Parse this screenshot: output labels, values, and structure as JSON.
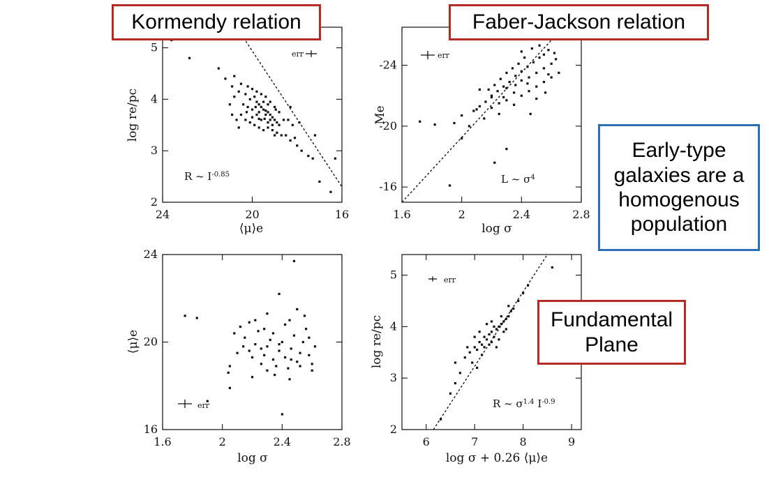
{
  "callouts": {
    "kormendy": "Kormendy relation",
    "faber_jackson": "Faber-Jackson relation",
    "fundamental_plane": [
      "Fundamental",
      "Plane"
    ],
    "early_type": [
      "Early-type",
      "galaxies are a",
      "homogenous",
      "population"
    ]
  },
  "chart_data": [
    {
      "type": "scatter",
      "xlabel": "⟨μ⟩e",
      "ylabel": "log re/pc",
      "xlim": [
        24,
        16
      ],
      "ylim": [
        2,
        5.4
      ],
      "xticks": [
        24,
        20,
        16
      ],
      "yticks": [
        2,
        3,
        4,
        5
      ],
      "x_reversed": true,
      "annotation": "R ~ I^-0.85",
      "err_label": "err",
      "fit": [
        [
          20.7,
          5.4
        ],
        [
          16,
          2.3
        ]
      ],
      "points": [
        [
          23.6,
          5.15
        ],
        [
          22.8,
          4.8
        ],
        [
          21.2,
          4.4
        ],
        [
          20.9,
          4.25
        ],
        [
          20.6,
          4.15
        ],
        [
          20.3,
          4.1
        ],
        [
          20.1,
          4.0
        ],
        [
          19.9,
          4.05
        ],
        [
          19.8,
          3.95
        ],
        [
          19.7,
          3.9
        ],
        [
          19.6,
          3.85
        ],
        [
          19.5,
          3.8
        ],
        [
          19.4,
          3.78
        ],
        [
          19.3,
          3.75
        ],
        [
          19.2,
          3.7
        ],
        [
          19.1,
          3.65
        ],
        [
          19.0,
          3.6
        ],
        [
          18.9,
          3.55
        ],
        [
          18.8,
          3.5
        ],
        [
          19.5,
          3.95
        ],
        [
          19.4,
          3.7
        ],
        [
          19.3,
          3.9
        ],
        [
          19.2,
          3.6
        ],
        [
          19.6,
          3.6
        ],
        [
          19.7,
          3.75
        ],
        [
          19.8,
          3.7
        ],
        [
          20.0,
          3.8
        ],
        [
          20.2,
          3.85
        ],
        [
          20.4,
          3.9
        ],
        [
          20.5,
          3.7
        ],
        [
          20.3,
          3.6
        ],
        [
          20.1,
          3.55
        ],
        [
          19.9,
          3.5
        ],
        [
          19.7,
          3.45
        ],
        [
          19.5,
          3.4
        ],
        [
          19.3,
          3.45
        ],
        [
          19.1,
          3.4
        ],
        [
          18.9,
          3.35
        ],
        [
          18.7,
          3.3
        ],
        [
          18.5,
          3.3
        ],
        [
          18.3,
          3.2
        ],
        [
          18.0,
          3.1
        ],
        [
          17.8,
          3.0
        ],
        [
          17.5,
          2.9
        ],
        [
          17.0,
          2.4
        ],
        [
          17.3,
          2.85
        ],
        [
          18.2,
          3.5
        ],
        [
          18.6,
          3.6
        ],
        [
          19.0,
          3.85
        ],
        [
          19.2,
          3.95
        ],
        [
          19.4,
          4.05
        ],
        [
          19.6,
          4.1
        ],
        [
          19.8,
          4.15
        ],
        [
          20.0,
          4.2
        ],
        [
          20.2,
          4.25
        ],
        [
          20.5,
          4.3
        ],
        [
          20.8,
          4.05
        ],
        [
          21.0,
          3.9
        ],
        [
          20.9,
          3.7
        ],
        [
          20.7,
          3.6
        ],
        [
          20.6,
          3.45
        ],
        [
          18.4,
          3.6
        ],
        [
          18.1,
          3.25
        ],
        [
          18.8,
          3.75
        ],
        [
          19.0,
          3.3
        ],
        [
          20.8,
          4.45
        ],
        [
          21.5,
          4.6
        ],
        [
          20.0,
          3.65
        ],
        [
          19.7,
          3.62
        ],
        [
          19.3,
          3.55
        ],
        [
          19.1,
          3.5
        ],
        [
          18.95,
          3.8
        ],
        [
          19.45,
          3.62
        ],
        [
          19.85,
          3.85
        ],
        [
          20.25,
          3.75
        ],
        [
          17.2,
          3.3
        ],
        [
          16.5,
          2.2
        ],
        [
          16.3,
          2.85
        ],
        [
          17.9,
          3.55
        ],
        [
          18.3,
          3.85
        ]
      ]
    },
    {
      "type": "scatter",
      "xlabel": "log σ",
      "ylabel": "Me",
      "xlim": [
        1.6,
        2.8
      ],
      "ylim": [
        -15,
        -26.5
      ],
      "xticks": [
        1.6,
        2,
        2.4,
        2.8
      ],
      "yticks": [
        -16,
        -20,
        -24
      ],
      "annotation": "L ~ σ^4",
      "err_label": "err",
      "fit": [
        [
          1.6,
          -15
        ],
        [
          2.68,
          -26.5
        ]
      ],
      "points": [
        [
          1.72,
          -20.3
        ],
        [
          1.82,
          -20.1
        ],
        [
          1.92,
          -16.1
        ],
        [
          1.95,
          -20.2
        ],
        [
          2.0,
          -20.7
        ],
        [
          2.0,
          -19.2
        ],
        [
          2.05,
          -20.0
        ],
        [
          2.1,
          -21.1
        ],
        [
          2.15,
          -20.5
        ],
        [
          2.2,
          -22.0
        ],
        [
          2.25,
          -21.5
        ],
        [
          2.3,
          -22.5
        ],
        [
          2.35,
          -22.2
        ],
        [
          2.4,
          -23.0
        ],
        [
          2.45,
          -23.2
        ],
        [
          2.5,
          -23.5
        ],
        [
          2.55,
          -23.8
        ],
        [
          2.6,
          -24.1
        ],
        [
          2.62,
          -24.8
        ],
        [
          2.58,
          -25.0
        ],
        [
          2.52,
          -24.5
        ],
        [
          2.48,
          -24.2
        ],
        [
          2.44,
          -23.9
        ],
        [
          2.4,
          -23.6
        ],
        [
          2.36,
          -23.3
        ],
        [
          2.32,
          -22.9
        ],
        [
          2.28,
          -22.6
        ],
        [
          2.24,
          -22.3
        ],
        [
          2.2,
          -21.9
        ],
        [
          2.16,
          -21.6
        ],
        [
          2.12,
          -21.3
        ],
        [
          2.08,
          -21.0
        ],
        [
          2.3,
          -21.7
        ],
        [
          2.35,
          -21.4
        ],
        [
          2.4,
          -22.0
        ],
        [
          2.45,
          -22.3
        ],
        [
          2.5,
          -22.6
        ],
        [
          2.55,
          -22.9
        ],
        [
          2.6,
          -23.2
        ],
        [
          2.65,
          -23.5
        ],
        [
          2.42,
          -24.5
        ],
        [
          2.38,
          -24.1
        ],
        [
          2.34,
          -23.8
        ],
        [
          2.3,
          -23.5
        ],
        [
          2.26,
          -23.1
        ],
        [
          2.22,
          -22.7
        ],
        [
          2.18,
          -22.4
        ],
        [
          2.46,
          -20.8
        ],
        [
          2.25,
          -20.8
        ],
        [
          2.3,
          -18.5
        ],
        [
          2.22,
          -17.6
        ],
        [
          2.5,
          -21.8
        ],
        [
          2.56,
          -22.2
        ],
        [
          2.63,
          -24.4
        ],
        [
          2.52,
          -25.3
        ],
        [
          2.47,
          -25.1
        ],
        [
          2.58,
          -23.4
        ],
        [
          2.44,
          -22.8
        ],
        [
          2.36,
          -22.7
        ],
        [
          2.28,
          -21.9
        ],
        [
          2.2,
          -21.2
        ],
        [
          2.12,
          -22.4
        ],
        [
          2.4,
          -24.9
        ],
        [
          2.55,
          -24.7
        ]
      ]
    },
    {
      "type": "scatter",
      "xlabel": "log σ",
      "ylabel": "⟨μ⟩e",
      "xlim": [
        1.6,
        2.8
      ],
      "ylim": [
        16,
        24
      ],
      "xticks": [
        1.6,
        2,
        2.4,
        2.8
      ],
      "yticks": [
        16,
        20,
        24
      ],
      "y_reversed": true,
      "err_label": "err",
      "points": [
        [
          1.75,
          21.2
        ],
        [
          1.83,
          21.1
        ],
        [
          1.9,
          17.3
        ],
        [
          2.05,
          17.9
        ],
        [
          2.05,
          18.9
        ],
        [
          2.08,
          20.4
        ],
        [
          2.1,
          19.5
        ],
        [
          2.12,
          20.7
        ],
        [
          2.15,
          20.2
        ],
        [
          2.18,
          19.6
        ],
        [
          2.2,
          19.3
        ],
        [
          2.22,
          19.9
        ],
        [
          2.24,
          20.5
        ],
        [
          2.26,
          19.0
        ],
        [
          2.28,
          19.4
        ],
        [
          2.3,
          19.8
        ],
        [
          2.32,
          20.1
        ],
        [
          2.34,
          19.2
        ],
        [
          2.36,
          18.9
        ],
        [
          2.38,
          19.6
        ],
        [
          2.4,
          20.0
        ],
        [
          2.42,
          19.3
        ],
        [
          2.44,
          18.8
        ],
        [
          2.46,
          19.7
        ],
        [
          2.48,
          20.3
        ],
        [
          2.5,
          19.1
        ],
        [
          2.52,
          19.5
        ],
        [
          2.54,
          20.0
        ],
        [
          2.56,
          20.6
        ],
        [
          2.58,
          19.4
        ],
        [
          2.6,
          19.0
        ],
        [
          2.62,
          19.8
        ],
        [
          2.4,
          16.7
        ],
        [
          2.22,
          21.0
        ],
        [
          2.3,
          21.3
        ],
        [
          2.45,
          21.0
        ],
        [
          2.5,
          21.5
        ],
        [
          2.55,
          21.2
        ],
        [
          2.38,
          22.2
        ],
        [
          2.48,
          23.7
        ],
        [
          2.2,
          18.4
        ],
        [
          2.35,
          18.5
        ],
        [
          2.45,
          18.3
        ],
        [
          2.3,
          18.7
        ],
        [
          2.6,
          18.7
        ],
        [
          2.42,
          20.8
        ],
        [
          2.28,
          20.6
        ],
        [
          2.18,
          20.9
        ],
        [
          2.34,
          20.4
        ],
        [
          2.58,
          20.2
        ],
        [
          2.26,
          19.7
        ],
        [
          2.38,
          19.9
        ],
        [
          2.46,
          19.2
        ],
        [
          2.52,
          18.9
        ],
        [
          2.14,
          19.8
        ],
        [
          2.04,
          18.6
        ]
      ]
    },
    {
      "type": "scatter",
      "xlabel": "log σ + 0.26 ⟨μ⟩e",
      "ylabel": "log re/pc",
      "xlim": [
        5.5,
        9.2
      ],
      "ylim": [
        2,
        5.4
      ],
      "xticks": [
        6,
        7,
        8,
        9
      ],
      "yticks": [
        2,
        3,
        4,
        5
      ],
      "annotation": "R ~ σ^1.4 I^-0.9",
      "err_label": "err",
      "fit": [
        [
          6.15,
          2.0
        ],
        [
          8.5,
          5.4
        ]
      ],
      "points": [
        [
          6.3,
          2.2
        ],
        [
          6.5,
          2.7
        ],
        [
          6.6,
          3.3
        ],
        [
          6.7,
          3.1
        ],
        [
          6.8,
          3.4
        ],
        [
          6.9,
          3.5
        ],
        [
          7.0,
          3.6
        ],
        [
          7.05,
          3.55
        ],
        [
          7.1,
          3.7
        ],
        [
          7.15,
          3.65
        ],
        [
          7.2,
          3.8
        ],
        [
          7.25,
          3.75
        ],
        [
          7.3,
          3.85
        ],
        [
          7.35,
          3.9
        ],
        [
          7.4,
          3.8
        ],
        [
          7.45,
          3.95
        ],
        [
          7.5,
          4.0
        ],
        [
          7.55,
          4.05
        ],
        [
          7.6,
          4.1
        ],
        [
          7.65,
          4.15
        ],
        [
          7.7,
          4.2
        ],
        [
          7.75,
          4.3
        ],
        [
          7.8,
          4.35
        ],
        [
          7.9,
          4.5
        ],
        [
          8.0,
          4.65
        ],
        [
          8.1,
          4.8
        ],
        [
          8.6,
          5.15
        ],
        [
          7.0,
          3.8
        ],
        [
          7.1,
          3.9
        ],
        [
          7.2,
          3.6
        ],
        [
          7.3,
          3.65
        ],
        [
          7.4,
          4.0
        ],
        [
          7.5,
          3.75
        ],
        [
          7.6,
          3.9
        ],
        [
          7.7,
          4.4
        ],
        [
          6.95,
          3.3
        ],
        [
          7.05,
          3.2
        ],
        [
          7.25,
          4.05
        ],
        [
          7.35,
          3.7
        ],
        [
          7.45,
          3.6
        ],
        [
          7.55,
          4.2
        ],
        [
          7.65,
          3.95
        ],
        [
          6.85,
          3.6
        ],
        [
          7.15,
          3.45
        ],
        [
          7.35,
          4.1
        ],
        [
          6.6,
          2.9
        ]
      ]
    }
  ]
}
